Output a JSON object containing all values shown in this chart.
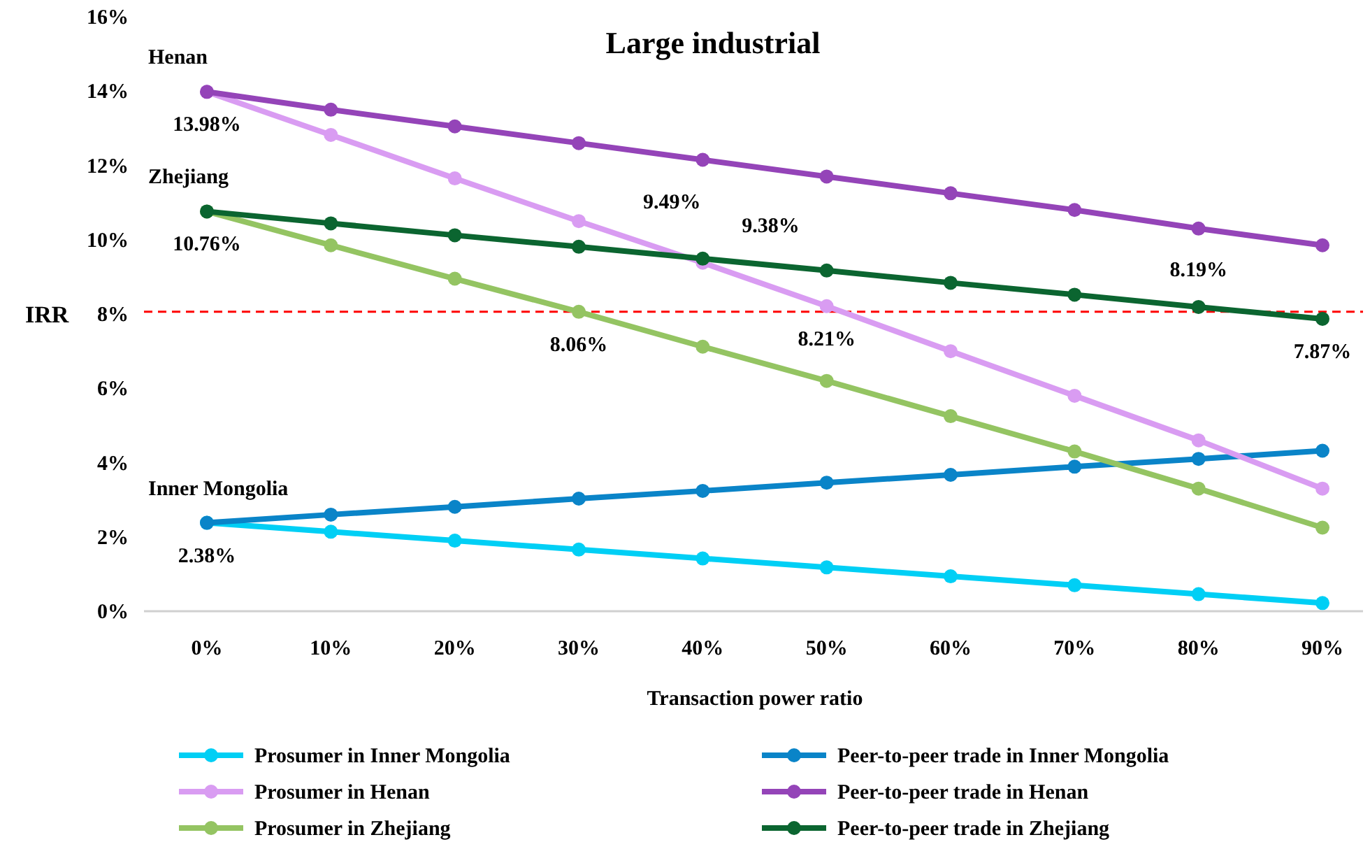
{
  "chart_data": {
    "type": "line",
    "title": "Large industrial",
    "xlabel": "Transaction power ratio",
    "ylabel": "IRR",
    "categories": [
      "0%",
      "10%",
      "20%",
      "30%",
      "40%",
      "50%",
      "60%",
      "70%",
      "80%",
      "90%"
    ],
    "ylim": [
      0,
      16
    ],
    "yticks": [
      {
        "value": 0,
        "label": "0%"
      },
      {
        "value": 2,
        "label": "2%"
      },
      {
        "value": 4,
        "label": "4%"
      },
      {
        "value": 6,
        "label": "6%"
      },
      {
        "value": 8,
        "label": "8%"
      },
      {
        "value": 10,
        "label": "10%"
      },
      {
        "value": 12,
        "label": "12%"
      },
      {
        "value": 14,
        "label": "14%"
      },
      {
        "value": 16,
        "label": "16%"
      }
    ],
    "grid": false,
    "legend": "bottom",
    "marker": "circle",
    "line_style": "solid",
    "series": [
      {
        "name": "Prosumer in Inner Mongolia",
        "color": "#00cff5",
        "values": [
          2.38,
          2.14,
          1.9,
          1.66,
          1.42,
          1.18,
          0.94,
          0.7,
          0.46,
          0.22
        ],
        "value_labels": [
          null,
          null,
          null,
          null,
          null,
          null,
          null,
          null,
          null,
          null
        ]
      },
      {
        "name": "Peer-to-peer trade in Inner Mongolia",
        "color": "#0a84c8",
        "values": [
          2.38,
          2.6,
          2.81,
          3.03,
          3.24,
          3.46,
          3.67,
          3.89,
          4.1,
          4.32
        ],
        "value_labels": [
          "2.38%",
          null,
          null,
          null,
          null,
          null,
          null,
          null,
          null,
          null
        ]
      },
      {
        "name": "Prosumer in Henan",
        "color": "#d99cf2",
        "values": [
          13.98,
          12.82,
          11.65,
          10.5,
          9.38,
          8.21,
          7.0,
          5.8,
          4.6,
          3.3
        ],
        "value_labels": [
          null,
          null,
          null,
          null,
          "9.38%",
          "8.21%",
          null,
          null,
          null,
          null
        ]
      },
      {
        "name": "Peer-to-peer trade in Henan",
        "color": "#9444b8",
        "values": [
          13.98,
          13.5,
          13.05,
          12.6,
          12.15,
          11.7,
          11.25,
          10.8,
          10.3,
          9.85
        ],
        "value_labels": [
          "13.98%",
          null,
          null,
          null,
          null,
          null,
          null,
          null,
          null,
          null
        ]
      },
      {
        "name": "Prosumer in Zhejiang",
        "color": "#94c462",
        "values": [
          10.76,
          9.85,
          8.95,
          8.06,
          7.12,
          6.2,
          5.25,
          4.3,
          3.3,
          2.25
        ],
        "value_labels": [
          null,
          null,
          null,
          "8.06%",
          null,
          null,
          null,
          null,
          null,
          null
        ]
      },
      {
        "name": "Peer-to-peer trade in Zhejiang",
        "color": "#0b6530",
        "values": [
          10.76,
          10.44,
          10.12,
          9.81,
          9.49,
          9.17,
          8.84,
          8.52,
          8.19,
          7.87
        ],
        "value_labels": [
          "10.76%",
          null,
          null,
          null,
          "9.49%",
          null,
          null,
          null,
          "8.19%",
          "7.87%"
        ]
      }
    ],
    "ref_lines": [
      {
        "axis": "y",
        "value": 8.06,
        "color": "#ff0000",
        "line_style": "dashed"
      }
    ],
    "annotations": [
      {
        "text": "Henan",
        "x": "0%",
        "y": 13.98
      },
      {
        "text": "Zhejiang",
        "x": "0%",
        "y": 10.76
      },
      {
        "text": "Inner Mongolia",
        "x": "0%",
        "y": 2.38
      }
    ]
  }
}
